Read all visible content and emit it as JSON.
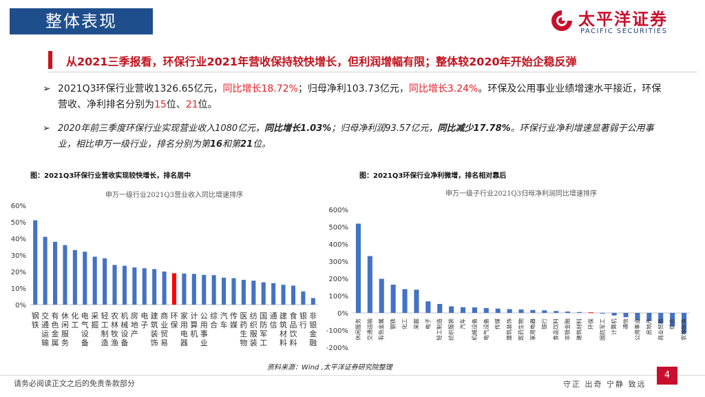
{
  "header": {
    "section_title": "整体表现",
    "logo_name": "太平洋证券",
    "logo_sub": "PACIFIC SECURITIES"
  },
  "headline": "从2021三季报看，环保行业2021年营收保持较快增长，但利润增幅有限；整体较2020年开始企稳反弹",
  "bullets": [
    {
      "marker": "➢",
      "parts": [
        {
          "text": "2021Q3环保行业营收1326.65亿元，",
          "style": "normal"
        },
        {
          "text": "同比增长18.72%",
          "style": "red"
        },
        {
          "text": "；归母净利103.73亿元，",
          "style": "normal"
        },
        {
          "text": "同比增长3.24%",
          "style": "red"
        },
        {
          "text": "。环保及公用事业业绩增速水平接近，环保营收、净利排名分别为",
          "style": "normal"
        },
        {
          "text": "15",
          "style": "red"
        },
        {
          "text": "位、",
          "style": "normal"
        },
        {
          "text": "21",
          "style": "red"
        },
        {
          "text": "位。",
          "style": "normal"
        }
      ]
    },
    {
      "marker": "➢",
      "parts": [
        {
          "text": "2020年前三季度环保行业实现营业收入1080亿元，",
          "style": "normal"
        },
        {
          "text": "同比增长1.03%",
          "style": "bold"
        },
        {
          "text": "；归母净利润93.57亿元，",
          "style": "normal"
        },
        {
          "text": "同比减少17.78%",
          "style": "bold"
        },
        {
          "text": "。环保行业净利增速显著弱于公用事业，相比申万一级行业，排名分别为第",
          "style": "normal"
        },
        {
          "text": "16",
          "style": "bold"
        },
        {
          "text": "和第",
          "style": "normal"
        },
        {
          "text": "21",
          "style": "bold"
        },
        {
          "text": "位。",
          "style": "normal"
        }
      ]
    }
  ],
  "figures": {
    "left_caption": "图：2021Q3环保行业营收实现较快增长，排名居中",
    "right_caption": "图：2021Q3环保行业净利微增，排名相对靠后"
  },
  "chart_data": [
    {
      "type": "bar",
      "title": "申万一级行业2021Q3营业收入同比增速排序",
      "categories": [
        "钢铁",
        "交通运输",
        "有色金属",
        "休闲服务",
        "化工",
        "电气设备",
        "采掘",
        "轻工制造",
        "农林牧渔",
        "机械设备",
        "房地产",
        "电子",
        "建筑装饰",
        "商业贸易",
        "环保",
        "家用电器",
        "计算机",
        "公用事业",
        "综合",
        "汽车",
        "传媒",
        "医药生物",
        "纺织服装",
        "国防军工",
        "通信",
        "建筑材料",
        "食品饮料",
        "银行",
        "非银金融"
      ],
      "values": [
        51,
        41,
        38,
        36,
        33,
        32,
        29,
        28,
        24,
        23.5,
        22.5,
        22,
        21.5,
        20,
        19,
        18.8,
        18.6,
        18,
        17.8,
        16.3,
        16,
        15,
        14.5,
        13.5,
        13,
        12,
        11.5,
        8,
        4
      ],
      "highlight": "环保",
      "ylim": [
        0,
        60
      ],
      "yticks": [
        "0%",
        "10%",
        "20%",
        "30%",
        "40%",
        "50%",
        "60%"
      ],
      "xlabel": "",
      "ylabel": "",
      "grid": false,
      "colors": {
        "bar": "#4472c4",
        "highlight": "#ff0000"
      }
    },
    {
      "type": "bar",
      "title": "申万一级子行业2021Q3归母净利润同比增速排序",
      "categories": [
        "休闲服务",
        "交通运输",
        "有色金属",
        "钢铁",
        "化工",
        "采掘",
        "电子",
        "轻工制造",
        "纺织服装",
        "汽车",
        "机械设备",
        "电气设备",
        "传媒",
        "建筑装饰",
        "医药生物",
        "家用电器",
        "银行",
        "食品饮料",
        "非银金融",
        "建筑材料",
        "环保",
        "国防军工",
        "计算机",
        "通信",
        "公用事业",
        "房地产",
        "商业贸易",
        "综合",
        "农林牧渔"
      ],
      "values": [
        518,
        330,
        198,
        164,
        138,
        135,
        67,
        52,
        38,
        33,
        32,
        28,
        25,
        22,
        20,
        17,
        15,
        11,
        8,
        5,
        3.24,
        -2,
        -15,
        -25,
        -42,
        -48,
        -62,
        -78,
        -120
      ],
      "highlight": "环保",
      "ylim": [
        -200,
        600
      ],
      "yticks": [
        "-200%",
        "-100%",
        "0%",
        "100%",
        "200%",
        "300%",
        "400%",
        "500%",
        "600%"
      ],
      "xlabel": "",
      "ylabel": "",
      "grid": false,
      "colors": {
        "bar": "#4472c4",
        "highlight": "#ff0000"
      }
    }
  ],
  "source": "资料来源：Wind ,太平洋证券研究院整理",
  "footer": {
    "disclaimer": "请务必阅读正文之后的免责条款部分",
    "motto": "守正 出奇 宁静 致远",
    "page_number": "4"
  }
}
